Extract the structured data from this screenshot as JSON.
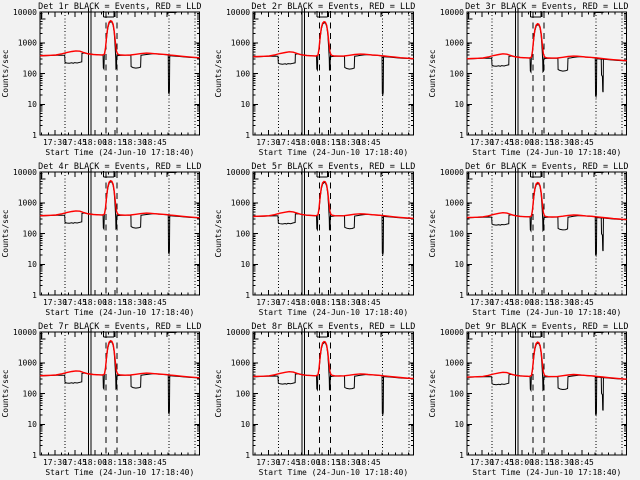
{
  "window": {
    "background": "#f2f2f2",
    "text_color": "#000000"
  },
  "chart_data": {
    "type": "line",
    "grid": {
      "rows": 3,
      "cols": 3
    },
    "axes": {
      "xlabel": "Start Time (24-Jun-10 17:18:40)",
      "ylabel": "Counts/sec",
      "x_start_time": "17:18:40",
      "x_range_minutes": [
        0,
        120
      ],
      "x_ticks": [
        {
          "t": 11.33,
          "label": "17:30"
        },
        {
          "t": 26.33,
          "label": "17:45"
        },
        {
          "t": 41.33,
          "label": "18:00"
        },
        {
          "t": 56.33,
          "label": "18:15"
        },
        {
          "t": 71.33,
          "label": "18:30"
        },
        {
          "t": 86.33,
          "label": "18:45"
        }
      ],
      "x_minor_first": 1.33,
      "x_minor_step": 5,
      "ylim": [
        1,
        10000
      ],
      "y_scale": "log",
      "y_ticks": [
        {
          "v": 1,
          "label": "1"
        },
        {
          "v": 10,
          "label": "10"
        },
        {
          "v": 100,
          "label": "100"
        },
        {
          "v": 1000,
          "label": "1000"
        },
        {
          "v": 10000,
          "label": "10000"
        }
      ]
    },
    "legend_note": "BLACK = Events, RED = LLD",
    "colors": {
      "events": "#000000",
      "lld": "#ff0000"
    },
    "guide_lines": [
      {
        "t": 19.0,
        "style": "dotted"
      },
      {
        "t": 36.6,
        "style": "solid"
      },
      {
        "t": 38.3,
        "style": "solid"
      },
      {
        "t": 49.7,
        "style": "dashed"
      },
      {
        "t": 58.0,
        "style": "dashed"
      },
      {
        "t": 96.8,
        "style": "dotted"
      },
      {
        "t": 116.4,
        "style": "dotted"
      }
    ],
    "flag_marks": [
      {
        "kind": "bracket-left",
        "t1": 1.2,
        "t2": 4.2
      },
      {
        "kind": "cup-flare",
        "t1": 47.8,
        "t2": 55.6
      },
      {
        "kind": "tick-post",
        "t1": 57.8,
        "t2": 57.8
      },
      {
        "kind": "gamma-right",
        "t1": 95.5,
        "t2": 102.5
      }
    ],
    "base_series": {
      "lld": [
        [
          0,
          380
        ],
        [
          4,
          385
        ],
        [
          8,
          390
        ],
        [
          12,
          400
        ],
        [
          16,
          430
        ],
        [
          20,
          480
        ],
        [
          24,
          520
        ],
        [
          27,
          545
        ],
        [
          30,
          530
        ],
        [
          33,
          480
        ],
        [
          35,
          450
        ],
        [
          37,
          432
        ],
        [
          40,
          415
        ],
        [
          44,
          405
        ],
        [
          47,
          400
        ],
        [
          48.5,
          430
        ],
        [
          49.3,
          700
        ],
        [
          50.2,
          1800
        ],
        [
          51,
          3300
        ],
        [
          52,
          4700
        ],
        [
          53,
          5200
        ],
        [
          54,
          5000
        ],
        [
          55,
          4000
        ],
        [
          55.8,
          2400
        ],
        [
          56.6,
          1100
        ],
        [
          57.4,
          560
        ],
        [
          58.2,
          440
        ],
        [
          59,
          415
        ],
        [
          61,
          400
        ],
        [
          64,
          395
        ],
        [
          68,
          400
        ],
        [
          72,
          420
        ],
        [
          76,
          445
        ],
        [
          80,
          460
        ],
        [
          83,
          455
        ],
        [
          86,
          442
        ],
        [
          89,
          430
        ],
        [
          92,
          422
        ],
        [
          95,
          412
        ],
        [
          98,
          398
        ],
        [
          102,
          382
        ],
        [
          106,
          366
        ],
        [
          110,
          352
        ],
        [
          114,
          340
        ],
        [
          118,
          330
        ],
        [
          120,
          326
        ]
      ],
      "events": [
        [
          0,
          370
        ],
        [
          4,
          378
        ],
        [
          8,
          385
        ],
        [
          12,
          390
        ],
        [
          16,
          395
        ],
        [
          18.6,
          392
        ],
        [
          18.8,
          232
        ],
        [
          20,
          220
        ],
        [
          22,
          215
        ],
        [
          24,
          222
        ],
        [
          25,
          214
        ],
        [
          26,
          226
        ],
        [
          28,
          220
        ],
        [
          30,
          232
        ],
        [
          31.4,
          240
        ],
        [
          31.6,
          452
        ],
        [
          33,
          465
        ],
        [
          34.5,
          455
        ],
        [
          36,
          445
        ],
        [
          38,
          430
        ],
        [
          40,
          418
        ],
        [
          43,
          408
        ],
        [
          46,
          400
        ],
        [
          47.4,
          396
        ],
        [
          47.6,
          152
        ],
        [
          48.1,
          140
        ],
        [
          48.4,
          420
        ],
        [
          49.3,
          650
        ],
        [
          50.2,
          1600
        ],
        [
          51,
          3000
        ],
        [
          52,
          4300
        ],
        [
          53,
          4800
        ],
        [
          54,
          4700
        ],
        [
          55,
          3700
        ],
        [
          55.8,
          2100
        ],
        [
          56.5,
          750
        ],
        [
          56.9,
          320
        ],
        [
          57.1,
          142
        ],
        [
          57.5,
          150
        ],
        [
          57.7,
          370
        ],
        [
          59,
          385
        ],
        [
          62,
          392
        ],
        [
          65,
          396
        ],
        [
          68.3,
          392
        ],
        [
          68.5,
          168
        ],
        [
          70,
          156
        ],
        [
          72,
          150
        ],
        [
          74,
          153
        ],
        [
          75.6,
          162
        ],
        [
          75.9,
          390
        ],
        [
          78,
          402
        ],
        [
          80,
          416
        ],
        [
          83,
          432
        ],
        [
          85,
          440
        ],
        [
          87,
          436
        ],
        [
          89,
          428
        ],
        [
          91,
          421
        ],
        [
          93,
          416
        ],
        [
          95,
          409
        ],
        [
          96.4,
          402
        ],
        [
          96.6,
          24
        ],
        [
          97,
          22
        ],
        [
          97.3,
          26
        ],
        [
          97.5,
          378
        ],
        [
          99,
          374
        ],
        [
          102,
          366
        ],
        [
          105,
          356
        ],
        [
          108,
          346
        ],
        [
          111,
          338
        ],
        [
          114,
          332
        ],
        [
          117,
          327
        ],
        [
          120,
          321
        ]
      ],
      "events_tail_drop": [
        [
          100.9,
          380
        ],
        [
          101.1,
          112
        ],
        [
          101.8,
          100
        ],
        [
          102.0,
          33
        ],
        [
          102.3,
          31
        ],
        [
          102.5,
          376
        ]
      ]
    },
    "panels": [
      {
        "det": "1r",
        "title": "Det 1r BLACK = Events, RED = LLD",
        "scale": 1.0,
        "has_tail_drop": false
      },
      {
        "det": "2r",
        "title": "Det 2r BLACK = Events, RED = LLD",
        "scale": 0.93,
        "has_tail_drop": false
      },
      {
        "det": "3r",
        "title": "Det 3r BLACK = Events, RED = LLD",
        "scale": 0.8,
        "has_tail_drop": true
      },
      {
        "det": "4r",
        "title": "Det 4r BLACK = Events, RED = LLD",
        "scale": 1.0,
        "has_tail_drop": false
      },
      {
        "det": "5r",
        "title": "Det 5r BLACK = Events, RED = LLD",
        "scale": 0.95,
        "has_tail_drop": false
      },
      {
        "det": "6r",
        "title": "Det 6r BLACK = Events, RED = LLD",
        "scale": 0.87,
        "has_tail_drop": true
      },
      {
        "det": "7r",
        "title": "Det 7r BLACK = Events, RED = LLD",
        "scale": 1.0,
        "has_tail_drop": false
      },
      {
        "det": "8r",
        "title": "Det 8r BLACK = Events, RED = LLD",
        "scale": 0.94,
        "has_tail_drop": false
      },
      {
        "det": "9r",
        "title": "Det 9r BLACK = Events, RED = LLD",
        "scale": 0.9,
        "has_tail_drop": true
      }
    ]
  }
}
